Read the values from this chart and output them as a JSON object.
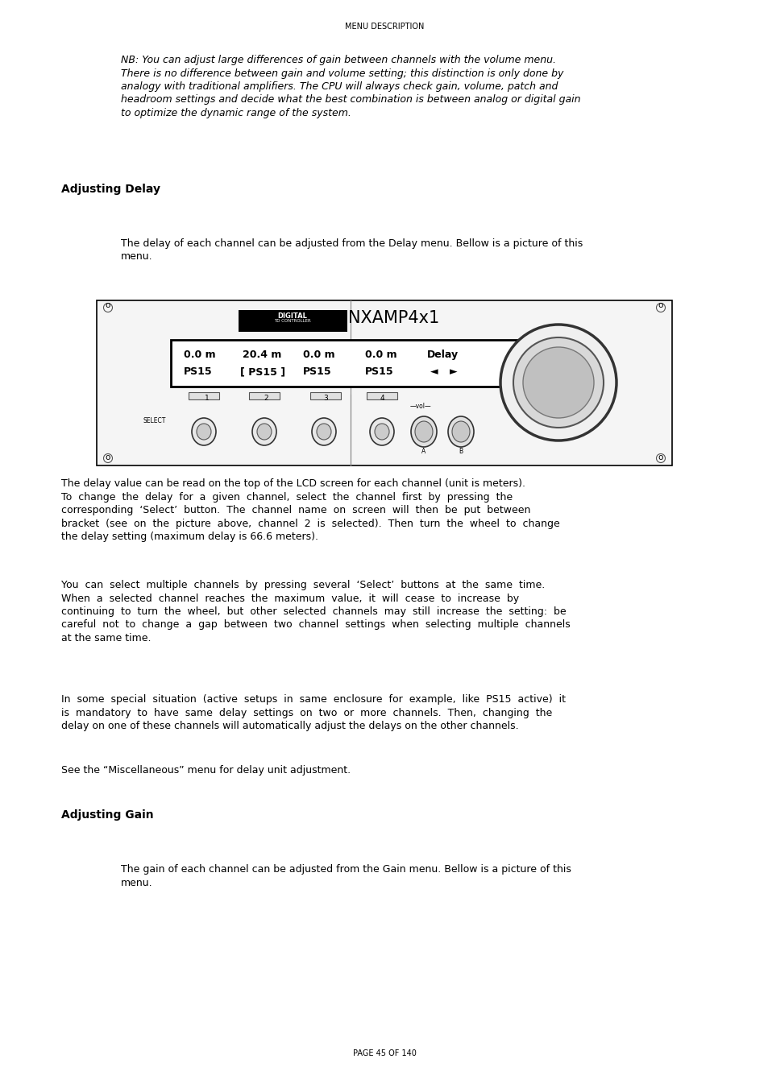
{
  "page_header": "MENU DESCRIPTION",
  "nb_lines": [
    "NB: You can adjust large differences of gain between channels with the volume menu.",
    "There is no difference between gain and volume setting; this distinction is only done by",
    "analogy with traditional amplifiers. The CPU will always check gain, volume, patch and",
    "headroom settings and decide what the best combination is between analog or digital gain",
    "to optimize the dynamic range of the system."
  ],
  "section1_title": "Adjusting Delay",
  "s1p1_lines": [
    "The delay of each channel can be adjusted from the Delay menu. Bellow is a picture of this",
    "menu."
  ],
  "s1p2_lines": [
    "The delay value can be read on the top of the LCD screen for each channel (unit is meters).",
    "To  change  the  delay  for  a  given  channel,  select  the  channel  first  by  pressing  the",
    "corresponding  ‘Select’  button.  The  channel  name  on  screen  will  then  be  put  between",
    "bracket  (see  on  the  picture  above,  channel  2  is  selected).  Then  turn  the  wheel  to  change",
    "the delay setting (maximum delay is 66.6 meters)."
  ],
  "s1p3_lines": [
    "You  can  select  multiple  channels  by  pressing  several  ‘Select’  buttons  at  the  same  time.",
    "When  a  selected  channel  reaches  the  maximum  value,  it  will  cease  to  increase  by",
    "continuing  to  turn  the  wheel,  but  other  selected  channels  may  still  increase  the  setting:  be",
    "careful  not  to  change  a  gap  between  two  channel  settings  when  selecting  multiple  channels",
    "at the same time."
  ],
  "s1p4_lines": [
    "In  some  special  situation  (active  setups  in  same  enclosure  for  example,  like  PS15  active)  it",
    "is  mandatory  to  have  same  delay  settings  on  two  or  more  channels.  Then,  changing  the",
    "delay on one of these channels will automatically adjust the delays on the other channels."
  ],
  "s1p5": "See the “Miscellaneous” menu for delay unit adjustment.",
  "section2_title": "Adjusting Gain",
  "s2p1_lines": [
    "The gain of each channel can be adjusted from the Gain menu. Bellow is a picture of this",
    "menu."
  ],
  "page_footer": "PAGE 45 OF 140",
  "bg_color": "#ffffff"
}
